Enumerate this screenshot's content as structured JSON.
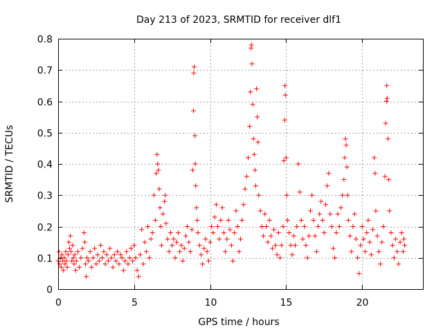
{
  "chart_data": {
    "type": "scatter",
    "title": "Day 213 of 2023, SRMTID for receiver dlf1",
    "xlabel": "GPS time / hours",
    "ylabel": "SRMTID / TECUs",
    "xlim": [
      0,
      24
    ],
    "ylim": [
      0,
      0.8
    ],
    "xticks": [
      0,
      5,
      10,
      15,
      20
    ],
    "yticks": [
      0,
      0.1,
      0.2,
      0.3,
      0.4,
      0.5,
      0.6,
      0.7,
      0.8
    ],
    "xtick_labels": [
      "0",
      "5",
      "10",
      "15",
      "20"
    ],
    "ytick_labels": [
      "0",
      "0.1",
      "0.2",
      "0.3",
      "0.4",
      "0.5",
      "0.6",
      "0.7",
      "0.8"
    ],
    "grid": true,
    "marker": "+",
    "color": "#ff0000",
    "series": [
      {
        "name": "SRMTID",
        "points": [
          [
            0.0,
            0.09
          ],
          [
            0.05,
            0.12
          ],
          [
            0.1,
            0.08
          ],
          [
            0.15,
            0.1
          ],
          [
            0.2,
            0.07
          ],
          [
            0.25,
            0.11
          ],
          [
            0.3,
            0.09
          ],
          [
            0.35,
            0.06
          ],
          [
            0.4,
            0.1
          ],
          [
            0.45,
            0.08
          ],
          [
            0.5,
            0.12
          ],
          [
            0.55,
            0.09
          ],
          [
            0.6,
            0.07
          ],
          [
            0.65,
            0.11
          ],
          [
            0.7,
            0.15
          ],
          [
            0.75,
            0.13
          ],
          [
            0.8,
            0.17
          ],
          [
            0.85,
            0.12
          ],
          [
            0.9,
            0.09
          ],
          [
            0.95,
            0.14
          ],
          [
            1.0,
            0.1
          ],
          [
            1.05,
            0.08
          ],
          [
            1.1,
            0.11
          ],
          [
            1.15,
            0.06
          ],
          [
            1.2,
            0.09
          ],
          [
            1.3,
            0.12
          ],
          [
            1.4,
            0.07
          ],
          [
            1.5,
            0.1
          ],
          [
            1.6,
            0.13
          ],
          [
            1.7,
            0.18
          ],
          [
            1.75,
            0.15
          ],
          [
            1.8,
            0.08
          ],
          [
            1.85,
            0.04
          ],
          [
            1.9,
            0.1
          ],
          [
            2.0,
            0.09
          ],
          [
            2.1,
            0.12
          ],
          [
            2.2,
            0.07
          ],
          [
            2.3,
            0.1
          ],
          [
            2.4,
            0.13
          ],
          [
            2.5,
            0.08
          ],
          [
            2.6,
            0.11
          ],
          [
            2.7,
            0.09
          ],
          [
            2.8,
            0.14
          ],
          [
            2.9,
            0.1
          ],
          [
            3.0,
            0.12
          ],
          [
            3.1,
            0.08
          ],
          [
            3.2,
            0.11
          ],
          [
            3.3,
            0.09
          ],
          [
            3.4,
            0.13
          ],
          [
            3.5,
            0.1
          ],
          [
            3.6,
            0.07
          ],
          [
            3.7,
            0.11
          ],
          [
            3.8,
            0.09
          ],
          [
            3.9,
            0.12
          ],
          [
            4.0,
            0.08
          ],
          [
            4.1,
            0.11
          ],
          [
            4.2,
            0.1
          ],
          [
            4.3,
            0.06
          ],
          [
            4.4,
            0.09
          ],
          [
            4.5,
            0.12
          ],
          [
            4.6,
            0.08
          ],
          [
            4.7,
            0.1
          ],
          [
            4.8,
            0.13
          ],
          [
            4.9,
            0.09
          ],
          [
            5.0,
            0.14
          ],
          [
            5.1,
            0.1
          ],
          [
            5.2,
            0.06
          ],
          [
            5.3,
            0.04
          ],
          [
            5.4,
            0.11
          ],
          [
            5.5,
            0.19
          ],
          [
            5.6,
            0.08
          ],
          [
            5.7,
            0.15
          ],
          [
            5.8,
            0.12
          ],
          [
            5.9,
            0.2
          ],
          [
            6.0,
            0.1
          ],
          [
            6.1,
            0.16
          ],
          [
            6.2,
            0.18
          ],
          [
            6.3,
            0.3
          ],
          [
            6.4,
            0.22
          ],
          [
            6.45,
            0.37
          ],
          [
            6.5,
            0.43
          ],
          [
            6.55,
            0.4
          ],
          [
            6.6,
            0.38
          ],
          [
            6.65,
            0.32
          ],
          [
            6.7,
            0.26
          ],
          [
            6.75,
            0.2
          ],
          [
            6.8,
            0.14
          ],
          [
            6.9,
            0.24
          ],
          [
            7.0,
            0.28
          ],
          [
            7.05,
            0.3
          ],
          [
            7.1,
            0.21
          ],
          [
            7.2,
            0.16
          ],
          [
            7.3,
            0.12
          ],
          [
            7.4,
            0.18
          ],
          [
            7.5,
            0.14
          ],
          [
            7.6,
            0.16
          ],
          [
            7.7,
            0.1
          ],
          [
            7.8,
            0.15
          ],
          [
            7.9,
            0.18
          ],
          [
            8.0,
            0.12
          ],
          [
            8.1,
            0.14
          ],
          [
            8.2,
            0.09
          ],
          [
            8.3,
            0.13
          ],
          [
            8.4,
            0.17
          ],
          [
            8.5,
            0.2
          ],
          [
            8.6,
            0.15
          ],
          [
            8.7,
            0.12
          ],
          [
            8.8,
            0.19
          ],
          [
            8.85,
            0.38
          ],
          [
            8.9,
            0.57
          ],
          [
            8.92,
            0.69
          ],
          [
            8.95,
            0.71
          ],
          [
            9.0,
            0.49
          ],
          [
            9.02,
            0.4
          ],
          [
            9.05,
            0.33
          ],
          [
            9.1,
            0.26
          ],
          [
            9.15,
            0.22
          ],
          [
            9.2,
            0.18
          ],
          [
            9.3,
            0.14
          ],
          [
            9.4,
            0.11
          ],
          [
            9.5,
            0.08
          ],
          [
            9.6,
            0.13
          ],
          [
            9.7,
            0.16
          ],
          [
            9.8,
            0.12
          ],
          [
            9.9,
            0.09
          ],
          [
            10.0,
            0.15
          ],
          [
            10.1,
            0.2
          ],
          [
            10.2,
            0.18
          ],
          [
            10.3,
            0.23
          ],
          [
            10.4,
            0.27
          ],
          [
            10.5,
            0.2
          ],
          [
            10.6,
            0.16
          ],
          [
            10.7,
            0.22
          ],
          [
            10.8,
            0.26
          ],
          [
            10.9,
            0.18
          ],
          [
            11.0,
            0.12
          ],
          [
            11.1,
            0.16
          ],
          [
            11.2,
            0.22
          ],
          [
            11.3,
            0.19
          ],
          [
            11.4,
            0.14
          ],
          [
            11.5,
            0.09
          ],
          [
            11.6,
            0.18
          ],
          [
            11.7,
            0.25
          ],
          [
            11.8,
            0.2
          ],
          [
            11.9,
            0.12
          ],
          [
            12.0,
            0.16
          ],
          [
            12.1,
            0.22
          ],
          [
            12.2,
            0.27
          ],
          [
            12.3,
            0.32
          ],
          [
            12.4,
            0.36
          ],
          [
            12.5,
            0.42
          ],
          [
            12.6,
            0.52
          ],
          [
            12.65,
            0.63
          ],
          [
            12.7,
            0.77
          ],
          [
            12.72,
            0.78
          ],
          [
            12.75,
            0.72
          ],
          [
            12.8,
            0.59
          ],
          [
            12.85,
            0.48
          ],
          [
            12.9,
            0.43
          ],
          [
            12.95,
            0.38
          ],
          [
            13.0,
            0.33
          ],
          [
            13.05,
            0.64
          ],
          [
            13.1,
            0.55
          ],
          [
            13.15,
            0.47
          ],
          [
            13.2,
            0.3
          ],
          [
            13.3,
            0.25
          ],
          [
            13.4,
            0.2
          ],
          [
            13.5,
            0.17
          ],
          [
            13.6,
            0.24
          ],
          [
            13.7,
            0.2
          ],
          [
            13.8,
            0.15
          ],
          [
            13.9,
            0.22
          ],
          [
            14.0,
            0.17
          ],
          [
            14.1,
            0.13
          ],
          [
            14.2,
            0.19
          ],
          [
            14.3,
            0.14
          ],
          [
            14.4,
            0.11
          ],
          [
            14.5,
            0.18
          ],
          [
            14.6,
            0.1
          ],
          [
            14.7,
            0.14
          ],
          [
            14.8,
            0.2
          ],
          [
            14.85,
            0.41
          ],
          [
            14.9,
            0.54
          ],
          [
            14.92,
            0.65
          ],
          [
            14.95,
            0.62
          ],
          [
            15.0,
            0.42
          ],
          [
            15.05,
            0.3
          ],
          [
            15.1,
            0.22
          ],
          [
            15.2,
            0.18
          ],
          [
            15.3,
            0.14
          ],
          [
            15.4,
            0.11
          ],
          [
            15.5,
            0.17
          ],
          [
            15.6,
            0.14
          ],
          [
            15.7,
            0.2
          ],
          [
            15.8,
            0.4
          ],
          [
            15.9,
            0.31
          ],
          [
            16.0,
            0.22
          ],
          [
            16.1,
            0.16
          ],
          [
            16.2,
            0.2
          ],
          [
            16.3,
            0.14
          ],
          [
            16.4,
            0.1
          ],
          [
            16.5,
            0.17
          ],
          [
            16.6,
            0.25
          ],
          [
            16.7,
            0.3
          ],
          [
            16.8,
            0.22
          ],
          [
            16.9,
            0.17
          ],
          [
            17.0,
            0.12
          ],
          [
            17.1,
            0.2
          ],
          [
            17.2,
            0.24
          ],
          [
            17.3,
            0.28
          ],
          [
            17.4,
            0.22
          ],
          [
            17.5,
            0.18
          ],
          [
            17.6,
            0.27
          ],
          [
            17.7,
            0.33
          ],
          [
            17.8,
            0.37
          ],
          [
            17.9,
            0.24
          ],
          [
            18.0,
            0.2
          ],
          [
            18.1,
            0.13
          ],
          [
            18.2,
            0.1
          ],
          [
            18.3,
            0.18
          ],
          [
            18.4,
            0.24
          ],
          [
            18.5,
            0.2
          ],
          [
            18.6,
            0.26
          ],
          [
            18.7,
            0.3
          ],
          [
            18.8,
            0.35
          ],
          [
            18.85,
            0.42
          ],
          [
            18.9,
            0.48
          ],
          [
            18.95,
            0.46
          ],
          [
            19.0,
            0.39
          ],
          [
            19.05,
            0.3
          ],
          [
            19.1,
            0.22
          ],
          [
            19.2,
            0.17
          ],
          [
            19.3,
            0.12
          ],
          [
            19.4,
            0.2
          ],
          [
            19.5,
            0.24
          ],
          [
            19.6,
            0.16
          ],
          [
            19.7,
            0.1
          ],
          [
            19.8,
            0.05
          ],
          [
            19.9,
            0.14
          ],
          [
            20.0,
            0.2
          ],
          [
            20.1,
            0.16
          ],
          [
            20.2,
            0.12
          ],
          [
            20.3,
            0.18
          ],
          [
            20.4,
            0.22
          ],
          [
            20.5,
            0.15
          ],
          [
            20.6,
            0.11
          ],
          [
            20.7,
            0.19
          ],
          [
            20.8,
            0.42
          ],
          [
            20.85,
            0.37
          ],
          [
            20.9,
            0.25
          ],
          [
            21.0,
            0.17
          ],
          [
            21.1,
            0.12
          ],
          [
            21.2,
            0.08
          ],
          [
            21.3,
            0.15
          ],
          [
            21.4,
            0.2
          ],
          [
            21.5,
            0.36
          ],
          [
            21.55,
            0.53
          ],
          [
            21.6,
            0.6
          ],
          [
            21.62,
            0.65
          ],
          [
            21.65,
            0.61
          ],
          [
            21.7,
            0.48
          ],
          [
            21.75,
            0.35
          ],
          [
            21.8,
            0.25
          ],
          [
            21.9,
            0.18
          ],
          [
            22.0,
            0.14
          ],
          [
            22.1,
            0.1
          ],
          [
            22.2,
            0.16
          ],
          [
            22.3,
            0.12
          ],
          [
            22.4,
            0.08
          ],
          [
            22.5,
            0.15
          ],
          [
            22.6,
            0.18
          ],
          [
            22.7,
            0.12
          ],
          [
            22.75,
            0.16
          ],
          [
            22.8,
            0.14
          ]
        ]
      }
    ]
  }
}
